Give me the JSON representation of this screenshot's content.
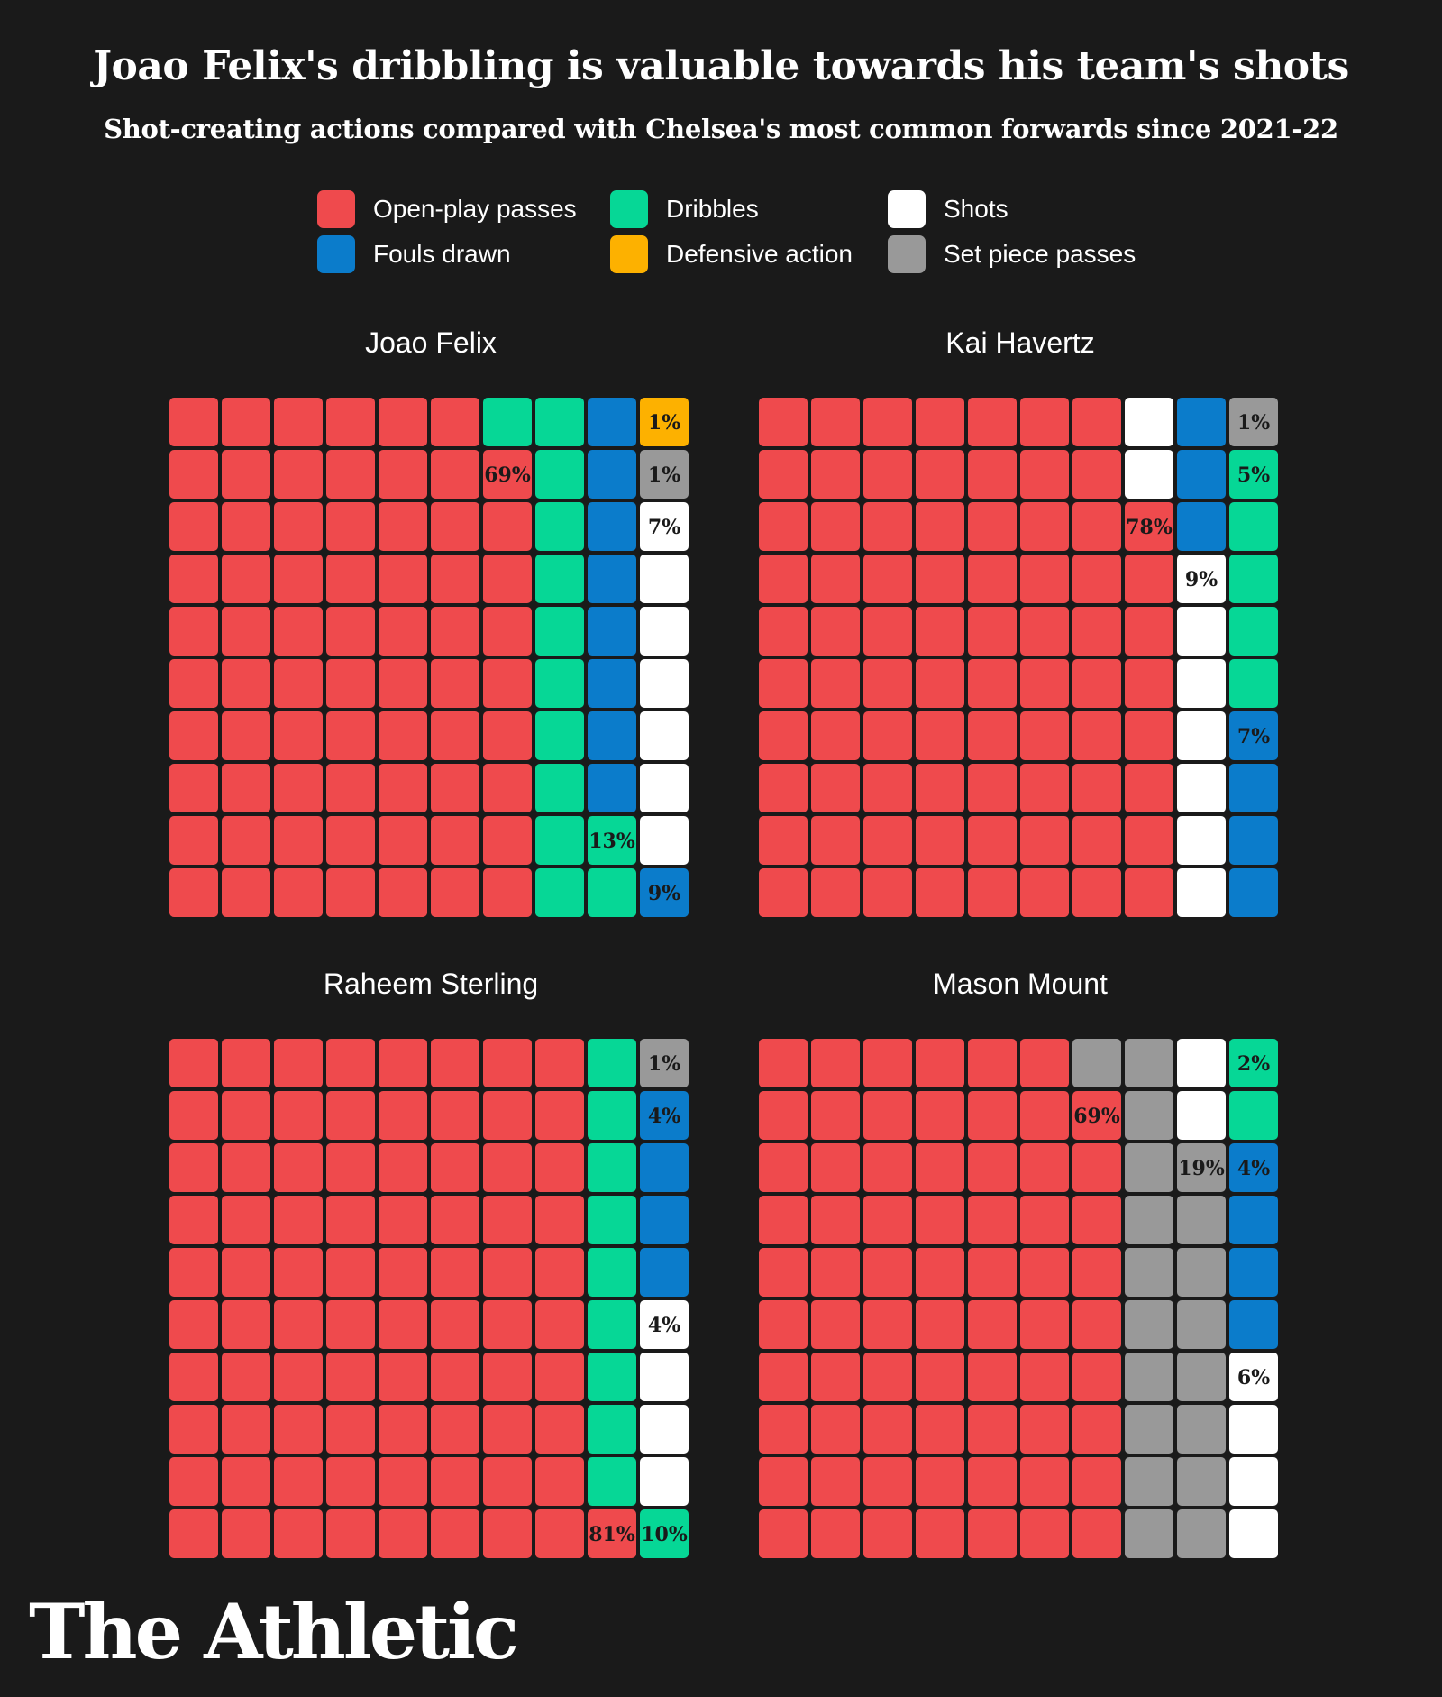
{
  "title": "Joao Felix's dribbling is valuable towards his team's shots",
  "subtitle": "Shot-creating actions compared with Chelsea's most common forwards since 2021-22",
  "logo": "The Athletic",
  "legend": [
    {
      "label": "Open-play passes",
      "color": "#ef4a4d"
    },
    {
      "label": "Fouls drawn",
      "color": "#0b7ccb"
    },
    {
      "label": "Dribbles",
      "color": "#06d796"
    },
    {
      "label": "Defensive action",
      "color": "#fdb100"
    },
    {
      "label": "Shots",
      "color": "#ffffff"
    },
    {
      "label": "Set piece passes",
      "color": "#999999"
    }
  ],
  "chart_data": [
    {
      "type": "waffle",
      "title": "Joao Felix",
      "columns": [
        [
          "open_play",
          "open_play",
          "open_play",
          "open_play",
          "open_play",
          "open_play",
          "open_play",
          "open_play",
          "open_play",
          "open_play"
        ],
        [
          "open_play",
          "open_play",
          "open_play",
          "open_play",
          "open_play",
          "open_play",
          "open_play",
          "open_play",
          "open_play",
          "open_play"
        ],
        [
          "open_play",
          "open_play",
          "open_play",
          "open_play",
          "open_play",
          "open_play",
          "open_play",
          "open_play",
          "open_play",
          "open_play"
        ],
        [
          "open_play",
          "open_play",
          "open_play",
          "open_play",
          "open_play",
          "open_play",
          "open_play",
          "open_play",
          "open_play",
          "open_play"
        ],
        [
          "open_play",
          "open_play",
          "open_play",
          "open_play",
          "open_play",
          "open_play",
          "open_play",
          "open_play",
          "open_play",
          "open_play"
        ],
        [
          "open_play",
          "open_play",
          "open_play",
          "open_play",
          "open_play",
          "open_play",
          "open_play",
          "open_play",
          "open_play",
          "open_play"
        ],
        [
          "dribbles",
          "open_play",
          "open_play",
          "open_play",
          "open_play",
          "open_play",
          "open_play",
          "open_play",
          "open_play",
          "open_play"
        ],
        [
          "dribbles",
          "dribbles",
          "dribbles",
          "dribbles",
          "dribbles",
          "dribbles",
          "dribbles",
          "dribbles",
          "dribbles",
          "dribbles"
        ],
        [
          "fouls",
          "fouls",
          "fouls",
          "fouls",
          "fouls",
          "fouls",
          "fouls",
          "fouls",
          "dribbles",
          "dribbles"
        ],
        [
          "defensive",
          "set_piece",
          "shots",
          "shots",
          "shots",
          "shots",
          "shots",
          "shots",
          "shots",
          "fouls"
        ]
      ],
      "labels": [
        {
          "col": 6,
          "row": 1,
          "text": "69%"
        },
        {
          "col": 9,
          "row": 0,
          "text": "1%"
        },
        {
          "col": 9,
          "row": 1,
          "text": "1%"
        },
        {
          "col": 9,
          "row": 2,
          "text": "7%"
        },
        {
          "col": 8,
          "row": 8,
          "text": "13%"
        },
        {
          "col": 9,
          "row": 9,
          "text": "9%"
        }
      ]
    },
    {
      "type": "waffle",
      "title": "Kai Havertz",
      "columns": [
        [
          "open_play",
          "open_play",
          "open_play",
          "open_play",
          "open_play",
          "open_play",
          "open_play",
          "open_play",
          "open_play",
          "open_play"
        ],
        [
          "open_play",
          "open_play",
          "open_play",
          "open_play",
          "open_play",
          "open_play",
          "open_play",
          "open_play",
          "open_play",
          "open_play"
        ],
        [
          "open_play",
          "open_play",
          "open_play",
          "open_play",
          "open_play",
          "open_play",
          "open_play",
          "open_play",
          "open_play",
          "open_play"
        ],
        [
          "open_play",
          "open_play",
          "open_play",
          "open_play",
          "open_play",
          "open_play",
          "open_play",
          "open_play",
          "open_play",
          "open_play"
        ],
        [
          "open_play",
          "open_play",
          "open_play",
          "open_play",
          "open_play",
          "open_play",
          "open_play",
          "open_play",
          "open_play",
          "open_play"
        ],
        [
          "open_play",
          "open_play",
          "open_play",
          "open_play",
          "open_play",
          "open_play",
          "open_play",
          "open_play",
          "open_play",
          "open_play"
        ],
        [
          "open_play",
          "open_play",
          "open_play",
          "open_play",
          "open_play",
          "open_play",
          "open_play",
          "open_play",
          "open_play",
          "open_play"
        ],
        [
          "shots",
          "shots",
          "open_play",
          "open_play",
          "open_play",
          "open_play",
          "open_play",
          "open_play",
          "open_play",
          "open_play"
        ],
        [
          "fouls",
          "fouls",
          "fouls",
          "shots",
          "shots",
          "shots",
          "shots",
          "shots",
          "shots",
          "shots"
        ],
        [
          "set_piece",
          "dribbles",
          "dribbles",
          "dribbles",
          "dribbles",
          "dribbles",
          "fouls",
          "fouls",
          "fouls",
          "fouls"
        ]
      ],
      "labels": [
        {
          "col": 7,
          "row": 2,
          "text": "78%"
        },
        {
          "col": 8,
          "row": 3,
          "text": "9%"
        },
        {
          "col": 9,
          "row": 0,
          "text": "1%"
        },
        {
          "col": 9,
          "row": 1,
          "text": "5%"
        },
        {
          "col": 9,
          "row": 6,
          "text": "7%"
        }
      ]
    },
    {
      "type": "waffle",
      "title": "Raheem Sterling",
      "columns": [
        [
          "open_play",
          "open_play",
          "open_play",
          "open_play",
          "open_play",
          "open_play",
          "open_play",
          "open_play",
          "open_play",
          "open_play"
        ],
        [
          "open_play",
          "open_play",
          "open_play",
          "open_play",
          "open_play",
          "open_play",
          "open_play",
          "open_play",
          "open_play",
          "open_play"
        ],
        [
          "open_play",
          "open_play",
          "open_play",
          "open_play",
          "open_play",
          "open_play",
          "open_play",
          "open_play",
          "open_play",
          "open_play"
        ],
        [
          "open_play",
          "open_play",
          "open_play",
          "open_play",
          "open_play",
          "open_play",
          "open_play",
          "open_play",
          "open_play",
          "open_play"
        ],
        [
          "open_play",
          "open_play",
          "open_play",
          "open_play",
          "open_play",
          "open_play",
          "open_play",
          "open_play",
          "open_play",
          "open_play"
        ],
        [
          "open_play",
          "open_play",
          "open_play",
          "open_play",
          "open_play",
          "open_play",
          "open_play",
          "open_play",
          "open_play",
          "open_play"
        ],
        [
          "open_play",
          "open_play",
          "open_play",
          "open_play",
          "open_play",
          "open_play",
          "open_play",
          "open_play",
          "open_play",
          "open_play"
        ],
        [
          "open_play",
          "open_play",
          "open_play",
          "open_play",
          "open_play",
          "open_play",
          "open_play",
          "open_play",
          "open_play",
          "open_play"
        ],
        [
          "dribbles",
          "dribbles",
          "dribbles",
          "dribbles",
          "dribbles",
          "dribbles",
          "dribbles",
          "dribbles",
          "dribbles",
          "open_play"
        ],
        [
          "set_piece",
          "fouls",
          "fouls",
          "fouls",
          "fouls",
          "shots",
          "shots",
          "shots",
          "shots",
          "dribbles"
        ]
      ],
      "labels": [
        {
          "col": 8,
          "row": 9,
          "text": "81%"
        },
        {
          "col": 9,
          "row": 0,
          "text": "1%"
        },
        {
          "col": 9,
          "row": 1,
          "text": "4%"
        },
        {
          "col": 9,
          "row": 5,
          "text": "4%"
        },
        {
          "col": 9,
          "row": 9,
          "text": "10%"
        }
      ]
    },
    {
      "type": "waffle",
      "title": "Mason Mount",
      "columns": [
        [
          "open_play",
          "open_play",
          "open_play",
          "open_play",
          "open_play",
          "open_play",
          "open_play",
          "open_play",
          "open_play",
          "open_play"
        ],
        [
          "open_play",
          "open_play",
          "open_play",
          "open_play",
          "open_play",
          "open_play",
          "open_play",
          "open_play",
          "open_play",
          "open_play"
        ],
        [
          "open_play",
          "open_play",
          "open_play",
          "open_play",
          "open_play",
          "open_play",
          "open_play",
          "open_play",
          "open_play",
          "open_play"
        ],
        [
          "open_play",
          "open_play",
          "open_play",
          "open_play",
          "open_play",
          "open_play",
          "open_play",
          "open_play",
          "open_play",
          "open_play"
        ],
        [
          "open_play",
          "open_play",
          "open_play",
          "open_play",
          "open_play",
          "open_play",
          "open_play",
          "open_play",
          "open_play",
          "open_play"
        ],
        [
          "open_play",
          "open_play",
          "open_play",
          "open_play",
          "open_play",
          "open_play",
          "open_play",
          "open_play",
          "open_play",
          "open_play"
        ],
        [
          "set_piece",
          "open_play",
          "open_play",
          "open_play",
          "open_play",
          "open_play",
          "open_play",
          "open_play",
          "open_play",
          "open_play"
        ],
        [
          "set_piece",
          "set_piece",
          "set_piece",
          "set_piece",
          "set_piece",
          "set_piece",
          "set_piece",
          "set_piece",
          "set_piece",
          "set_piece"
        ],
        [
          "shots",
          "shots",
          "set_piece",
          "set_piece",
          "set_piece",
          "set_piece",
          "set_piece",
          "set_piece",
          "set_piece",
          "set_piece"
        ],
        [
          "dribbles",
          "dribbles",
          "fouls",
          "fouls",
          "fouls",
          "fouls",
          "shots",
          "shots",
          "shots",
          "shots"
        ]
      ],
      "labels": [
        {
          "col": 6,
          "row": 1,
          "text": "69%"
        },
        {
          "col": 8,
          "row": 2,
          "text": "19%"
        },
        {
          "col": 9,
          "row": 0,
          "text": "2%"
        },
        {
          "col": 9,
          "row": 2,
          "text": "4%"
        },
        {
          "col": 9,
          "row": 6,
          "text": "6%"
        }
      ]
    }
  ],
  "category_colors": {
    "open_play": "#ef4a4d",
    "fouls": "#0b7ccb",
    "dribbles": "#06d796",
    "defensive": "#fdb100",
    "shots": "#ffffff",
    "set_piece": "#999999"
  }
}
